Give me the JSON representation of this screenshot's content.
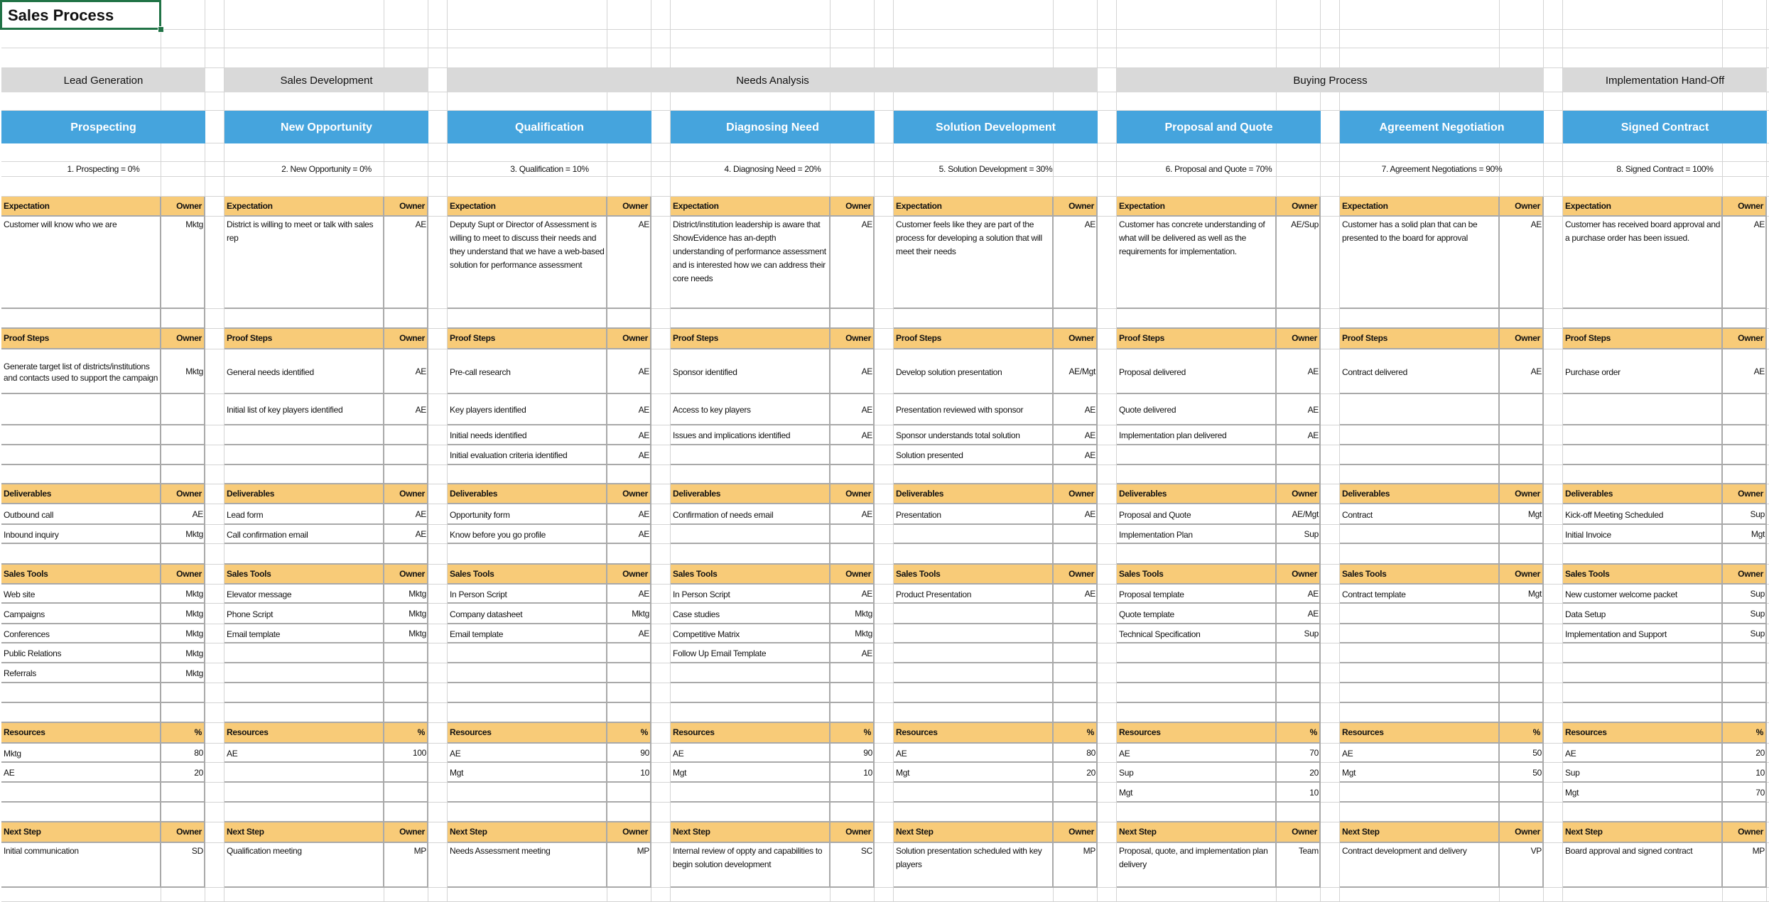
{
  "sheet": {
    "title": "Sales Process",
    "accent_selection": "#217346",
    "header_fill": "#f8cb78",
    "stage_fill": "#45a4dd",
    "phase_fill": "#d9d9d9"
  },
  "labels": {
    "expectation": "Expectation",
    "owner": "Owner",
    "proof_steps": "Proof Steps",
    "deliverables": "Deliverables",
    "sales_tools": "Sales Tools",
    "resources": "Resources",
    "percent": "%",
    "next_step": "Next Step"
  },
  "phase_groups": [
    {
      "label": "Lead Generation",
      "stages": 1
    },
    {
      "label": "Sales Development",
      "stages": 1
    },
    {
      "label": "Needs Analysis",
      "stages": 3
    },
    {
      "label": "Buying Process",
      "stages": 2
    },
    {
      "label": "Implementation Hand-Off",
      "stages": 1
    }
  ],
  "stages": [
    {
      "name": "Prospecting",
      "percent_label": "1. Prospecting = 0%",
      "expectation": {
        "text": "Customer will know who we are",
        "owner": "Mktg"
      },
      "proof_steps": [
        {
          "text": "Generate target list of districts/institutions and contacts used to support the campaign",
          "owner": "Mktg"
        }
      ],
      "deliverables": [
        {
          "text": "Outbound call",
          "owner": "AE"
        },
        {
          "text": "Inbound inquiry",
          "owner": "Mktg"
        }
      ],
      "sales_tools": [
        {
          "text": "Web site",
          "owner": "Mktg"
        },
        {
          "text": "Campaigns",
          "owner": "Mktg"
        },
        {
          "text": "Conferences",
          "owner": "Mktg"
        },
        {
          "text": "Public Relations",
          "owner": "Mktg"
        },
        {
          "text": "Referrals",
          "owner": "Mktg"
        }
      ],
      "resources": [
        {
          "name": "Mktg",
          "pct": "80"
        },
        {
          "name": "AE",
          "pct": "20"
        }
      ],
      "next_step": {
        "text": "Initial communication",
        "owner": "SD"
      }
    },
    {
      "name": "New Opportunity",
      "percent_label": "2. New Opportunity = 0%",
      "expectation": {
        "text": "District is willing to meet or talk with sales rep",
        "owner": "AE"
      },
      "proof_steps": [
        {
          "text": "General needs identified",
          "owner": "AE"
        },
        {
          "text": "Initial list of key players identified",
          "owner": "AE"
        }
      ],
      "deliverables": [
        {
          "text": "Lead form",
          "owner": "AE"
        },
        {
          "text": "Call confirmation email",
          "owner": "AE"
        }
      ],
      "sales_tools": [
        {
          "text": "Elevator message",
          "owner": "Mktg"
        },
        {
          "text": "Phone Script",
          "owner": "Mktg"
        },
        {
          "text": "Email template",
          "owner": "Mktg"
        }
      ],
      "resources": [
        {
          "name": "AE",
          "pct": "100"
        }
      ],
      "next_step": {
        "text": "Qualification meeting",
        "owner": "MP"
      }
    },
    {
      "name": "Qualification",
      "percent_label": "3. Qualification = 10%",
      "expectation": {
        "text": "Deputy Supt or Director of Assessment is willing to meet to discuss their needs and they understand that we have a web-based solution for performance assessment",
        "owner": "AE"
      },
      "proof_steps": [
        {
          "text": "Pre-call research",
          "owner": "AE"
        },
        {
          "text": "Key players identified",
          "owner": "AE"
        },
        {
          "text": "Initial needs identified",
          "owner": "AE"
        },
        {
          "text": "Initial evaluation criteria identified",
          "owner": "AE"
        }
      ],
      "deliverables": [
        {
          "text": "Opportunity form",
          "owner": "AE"
        },
        {
          "text": "Know before you go profile",
          "owner": "AE"
        }
      ],
      "sales_tools": [
        {
          "text": "In Person Script",
          "owner": "AE"
        },
        {
          "text": "Company datasheet",
          "owner": "Mktg"
        },
        {
          "text": "Email template",
          "owner": "AE"
        }
      ],
      "resources": [
        {
          "name": "AE",
          "pct": "90"
        },
        {
          "name": "Mgt",
          "pct": "10"
        }
      ],
      "next_step": {
        "text": "Needs Assessment meeting",
        "owner": "MP"
      }
    },
    {
      "name": "Diagnosing Need",
      "percent_label": "4. Diagnosing Need = 20%",
      "expectation": {
        "text": "District/institution leadership is aware that ShowEvidence has an-depth understanding of performance assessment and is interested how we can address their core needs",
        "owner": "AE"
      },
      "proof_steps": [
        {
          "text": "Sponsor identified",
          "owner": "AE"
        },
        {
          "text": "Access to key players",
          "owner": "AE"
        },
        {
          "text": "Issues and implications identified",
          "owner": "AE"
        }
      ],
      "deliverables": [
        {
          "text": "Confirmation of needs email",
          "owner": "AE"
        }
      ],
      "sales_tools": [
        {
          "text": "In Person Script",
          "owner": "AE"
        },
        {
          "text": "Case studies",
          "owner": "Mktg"
        },
        {
          "text": "Competitive Matrix",
          "owner": "Mktg"
        },
        {
          "text": "Follow Up Email Template",
          "owner": "AE"
        }
      ],
      "resources": [
        {
          "name": "AE",
          "pct": "90"
        },
        {
          "name": "Mgt",
          "pct": "10"
        }
      ],
      "next_step": {
        "text": "Internal review of oppty and capabilities to begin solution development",
        "owner": "SC"
      }
    },
    {
      "name": "Solution Development",
      "percent_label": "5. Solution Development = 30%",
      "expectation": {
        "text": "Customer feels like they are part of the process for developing a solution that will meet their needs",
        "owner": "AE"
      },
      "proof_steps": [
        {
          "text": "Develop solution presentation",
          "owner": "AE/Mgt"
        },
        {
          "text": "Presentation reviewed with sponsor",
          "owner": "AE"
        },
        {
          "text": "Sponsor understands total solution",
          "owner": "AE"
        },
        {
          "text": "Solution presented",
          "owner": "AE"
        }
      ],
      "deliverables": [
        {
          "text": "Presentation",
          "owner": "AE"
        }
      ],
      "sales_tools": [
        {
          "text": "Product Presentation",
          "owner": "AE"
        }
      ],
      "resources": [
        {
          "name": "AE",
          "pct": "80"
        },
        {
          "name": "Mgt",
          "pct": "20"
        }
      ],
      "next_step": {
        "text": "Solution presentation scheduled with key players",
        "owner": "MP"
      }
    },
    {
      "name": "Proposal and Quote",
      "percent_label": "6. Proposal and Quote = 70%",
      "expectation": {
        "text": "Customer has concrete understanding of what will be delivered as well as the requirements for implementation.",
        "owner": "AE/Sup"
      },
      "proof_steps": [
        {
          "text": "Proposal delivered",
          "owner": "AE"
        },
        {
          "text": "Quote delivered",
          "owner": "AE"
        },
        {
          "text": "Implementation plan delivered",
          "owner": "AE"
        }
      ],
      "deliverables": [
        {
          "text": "Proposal and Quote",
          "owner": "AE/Mgt"
        },
        {
          "text": "Implementation Plan",
          "owner": "Sup"
        }
      ],
      "sales_tools": [
        {
          "text": "Proposal template",
          "owner": "AE"
        },
        {
          "text": "Quote template",
          "owner": "AE"
        },
        {
          "text": "Technical Specification",
          "owner": "Sup"
        }
      ],
      "resources": [
        {
          "name": "AE",
          "pct": "70"
        },
        {
          "name": "Sup",
          "pct": "20"
        },
        {
          "name": "Mgt",
          "pct": "10"
        }
      ],
      "next_step": {
        "text": "Proposal, quote, and implementation plan delivery",
        "owner": "Team"
      }
    },
    {
      "name": "Agreement Negotiation",
      "percent_label": "7. Agreement Negotiations = 90%",
      "expectation": {
        "text": "Customer has a solid plan that can be presented to the board for approval",
        "owner": "AE"
      },
      "proof_steps": [
        {
          "text": "Contract delivered",
          "owner": "AE"
        }
      ],
      "deliverables": [
        {
          "text": "Contract",
          "owner": "Mgt"
        }
      ],
      "sales_tools": [
        {
          "text": "Contract template",
          "owner": "Mgt"
        }
      ],
      "resources": [
        {
          "name": "AE",
          "pct": "50"
        },
        {
          "name": "Mgt",
          "pct": "50"
        }
      ],
      "next_step": {
        "text": "Contract development and delivery",
        "owner": "VP"
      }
    },
    {
      "name": "Signed Contract",
      "percent_label": "8. Signed Contract = 100%",
      "expectation": {
        "text": "Customer has received board approval and a purchase order has been issued.",
        "owner": "AE"
      },
      "proof_steps": [
        {
          "text": "Purchase order",
          "owner": "AE"
        }
      ],
      "deliverables": [
        {
          "text": "Kick-off Meeting Scheduled",
          "owner": "Sup"
        },
        {
          "text": "Initial Invoice",
          "owner": "Mgt"
        }
      ],
      "sales_tools": [
        {
          "text": "New customer welcome packet",
          "owner": "Sup"
        },
        {
          "text": "Data Setup",
          "owner": "Sup"
        },
        {
          "text": "Implementation and Support",
          "owner": "Sup"
        }
      ],
      "resources": [
        {
          "name": "AE",
          "pct": "20"
        },
        {
          "name": "Sup",
          "pct": "10"
        },
        {
          "name": "Mgt",
          "pct": "70"
        }
      ],
      "next_step": {
        "text": "Board approval and signed contract",
        "owner": "MP"
      }
    }
  ]
}
